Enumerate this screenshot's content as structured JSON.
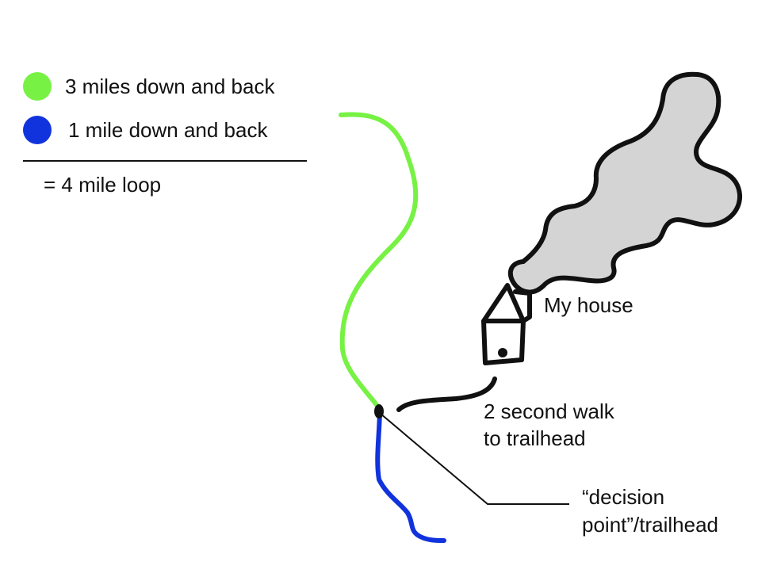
{
  "legend": {
    "green_label": "3 miles down and back",
    "blue_label": "1 mile down and back",
    "total_label": "= 4 mile loop"
  },
  "labels": {
    "house": "My house",
    "walk_line1": "2 second walk",
    "walk_line2": "to trailhead",
    "decision_line1": "“decision",
    "decision_line2": "point”/trailhead"
  },
  "colors": {
    "green_trail": "#77f244",
    "blue_trail": "#1133dd",
    "ink": "#111111",
    "cloud_fill": "#d4d4d4"
  },
  "icons": [
    "green-dot-icon",
    "blue-dot-icon",
    "house-icon",
    "smoke-cloud-icon"
  ]
}
